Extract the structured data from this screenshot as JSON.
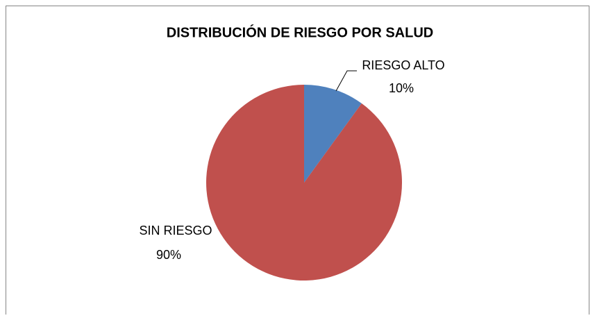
{
  "chart_data": {
    "type": "pie",
    "title": "DISTRIBUCIÓN DE RIESGO POR SALUD",
    "categories": [
      "RIESGO ALTO",
      "SIN RIESGO"
    ],
    "values": [
      10,
      90
    ],
    "value_labels": [
      "10%",
      "90%"
    ],
    "colors": [
      "#4f81bd",
      "#c0504d"
    ]
  }
}
